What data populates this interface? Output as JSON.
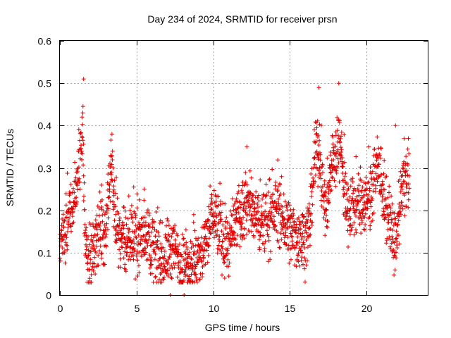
{
  "chart_data": {
    "type": "scatter",
    "title": "Day 234 of 2024, SRMTID for receiver prsn",
    "xlabel": "GPS time / hours",
    "ylabel": "SRMTID / TECUs",
    "xlim": [
      0,
      24
    ],
    "ylim": [
      0,
      0.6
    ],
    "xticks": [
      0,
      5,
      10,
      15,
      20
    ],
    "yticks": [
      0,
      0.1,
      0.2,
      0.3,
      0.4,
      0.5,
      0.6
    ],
    "xtick_labels": [
      "0",
      "5",
      "10",
      "15",
      "20"
    ],
    "ytick_labels": [
      "0",
      "0.1",
      "0.2",
      "0.3",
      "0.4",
      "0.5",
      "0.6"
    ],
    "grid": true,
    "marker": "+",
    "color": "#e00000",
    "profile": {
      "hours": [
        0.0,
        0.3,
        0.6,
        0.9,
        1.0,
        1.2,
        1.4,
        1.5,
        1.6,
        1.8,
        2.0,
        2.2,
        2.4,
        2.6,
        2.8,
        3.0,
        3.2,
        3.4,
        3.6,
        3.8,
        4.0,
        4.3,
        4.6,
        5.0,
        5.3,
        5.6,
        6.0,
        6.3,
        6.6,
        7.0,
        7.3,
        7.6,
        8.0,
        8.3,
        8.6,
        9.0,
        9.3,
        9.6,
        10.0,
        10.3,
        10.6,
        11.0,
        11.3,
        11.6,
        12.0,
        12.3,
        12.6,
        13.0,
        13.3,
        13.6,
        14.0,
        14.3,
        14.6,
        15.0,
        15.3,
        15.6,
        16.0,
        16.3,
        16.6,
        16.8,
        17.0,
        17.2,
        17.4,
        17.6,
        17.8,
        18.0,
        18.2,
        18.4,
        18.6,
        18.8,
        19.0,
        19.3,
        19.6,
        20.0,
        20.3,
        20.6,
        20.9,
        21.2,
        21.5,
        21.8,
        22.0,
        22.2,
        22.4,
        22.6,
        22.8
      ],
      "centers": [
        0.12,
        0.15,
        0.19,
        0.2,
        0.24,
        0.3,
        0.36,
        0.4,
        0.16,
        0.09,
        0.07,
        0.1,
        0.14,
        0.16,
        0.15,
        0.15,
        0.25,
        0.3,
        0.18,
        0.16,
        0.13,
        0.12,
        0.14,
        0.13,
        0.14,
        0.15,
        0.12,
        0.1,
        0.08,
        0.1,
        0.11,
        0.1,
        0.07,
        0.07,
        0.08,
        0.08,
        0.1,
        0.13,
        0.2,
        0.17,
        0.13,
        0.12,
        0.14,
        0.18,
        0.2,
        0.22,
        0.19,
        0.18,
        0.17,
        0.18,
        0.2,
        0.2,
        0.17,
        0.15,
        0.14,
        0.14,
        0.14,
        0.16,
        0.3,
        0.35,
        0.32,
        0.22,
        0.2,
        0.28,
        0.32,
        0.32,
        0.38,
        0.3,
        0.25,
        0.2,
        0.21,
        0.21,
        0.22,
        0.22,
        0.25,
        0.28,
        0.3,
        0.2,
        0.18,
        0.12,
        0.14,
        0.2,
        0.27,
        0.28,
        0.28
      ],
      "spread": 0.06,
      "points_per_profile_step": 24,
      "outliers": [
        {
          "x": 1.55,
          "y": 0.51
        },
        {
          "x": 3.4,
          "y": 0.38
        },
        {
          "x": 16.9,
          "y": 0.49
        },
        {
          "x": 18.2,
          "y": 0.5
        },
        {
          "x": 12.2,
          "y": 0.35
        },
        {
          "x": 21.9,
          "y": 0.4
        }
      ],
      "zero_points": [
        {
          "x": 7.2,
          "y": 0.0
        },
        {
          "x": 8.1,
          "y": 0.0
        }
      ]
    }
  }
}
